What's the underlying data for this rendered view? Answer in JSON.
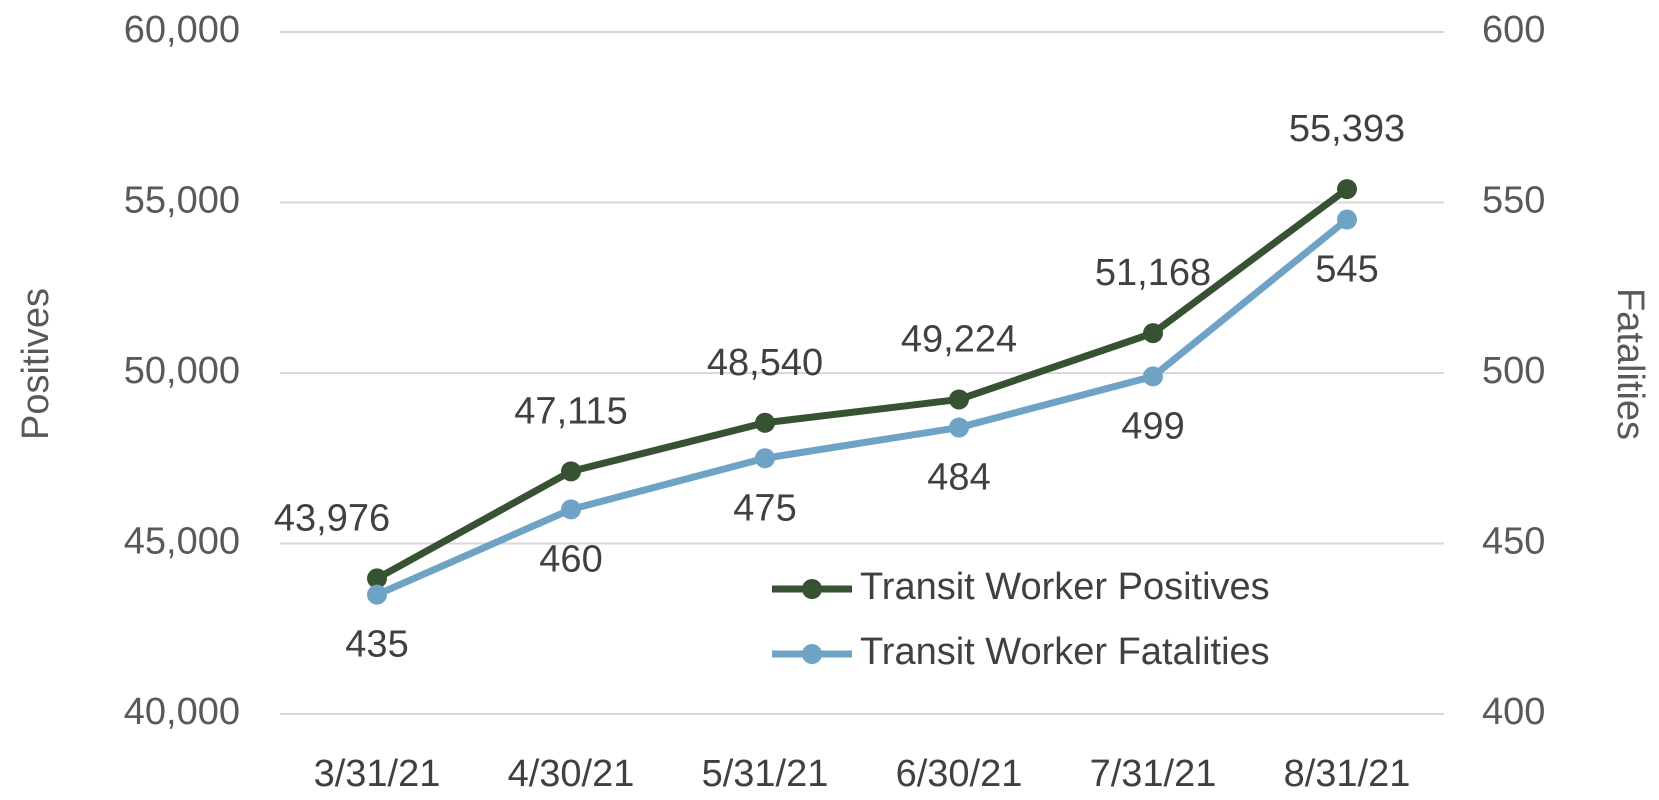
{
  "chart_data": {
    "type": "line",
    "categories": [
      "3/31/21",
      "4/30/21",
      "5/31/21",
      "6/30/21",
      "7/31/21",
      "8/31/21"
    ],
    "series": [
      {
        "name": "Transit Worker Positives",
        "color": "#375232",
        "axis": "y",
        "values": [
          43976,
          47115,
          48540,
          49224,
          51168,
          55393
        ],
        "value_labels": [
          "43,976",
          "47,115",
          "48,540",
          "49,224",
          "51,168",
          "55,393"
        ]
      },
      {
        "name": "Transit Worker Fatalities",
        "color": "#6fa3c6",
        "axis": "y2",
        "values": [
          435,
          460,
          475,
          484,
          499,
          545
        ]
      }
    ],
    "ylabel": "Positives",
    "y2label": "Fatalities",
    "ylim": [
      40000,
      60000
    ],
    "yticks": [
      {
        "value": 40000,
        "label": "40,000"
      },
      {
        "value": 45000,
        "label": "45,000"
      },
      {
        "value": 50000,
        "label": "50,000"
      },
      {
        "value": 55000,
        "label": "55,000"
      },
      {
        "value": 60000,
        "label": "60,000"
      }
    ],
    "y2lim": [
      400,
      600
    ],
    "y2ticks": [
      400,
      450,
      500,
      550,
      600
    ],
    "grid": true,
    "legend": "lower right"
  }
}
